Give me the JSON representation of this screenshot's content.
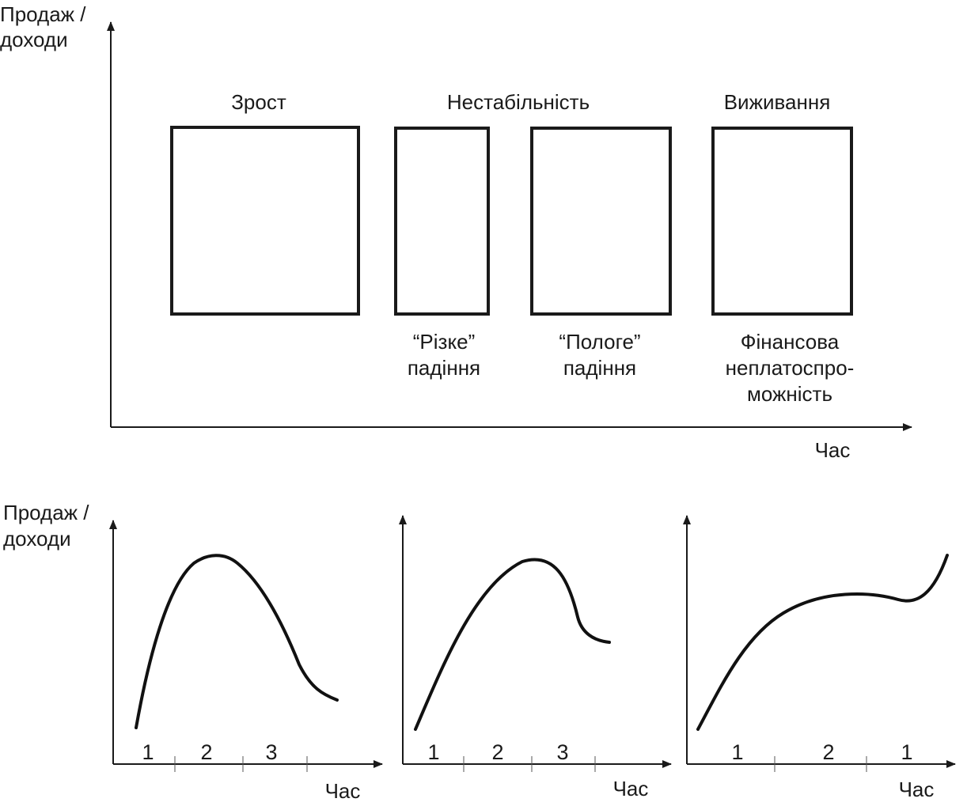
{
  "top": {
    "y_axis_label": [
      "Продаж /",
      "доходи"
    ],
    "x_axis_label": "Час",
    "stage_headers": {
      "growth": "Зрост",
      "instability": "Нестабільність",
      "survival": "Виживання"
    },
    "box_captions": {
      "sharp_decline": [
        "“Різке”",
        "падіння"
      ],
      "gentle_decline": [
        "“Пологе”",
        "падіння"
      ],
      "insolvency": [
        "Фінансова",
        "неплатоспро-",
        "можність"
      ]
    }
  },
  "bottom": {
    "y_axis_label": [
      "Продаж /",
      "доходи"
    ],
    "charts": [
      {
        "x_axis_label": "Час",
        "phase_labels": [
          "1",
          "2",
          "3"
        ]
      },
      {
        "x_axis_label": "Час",
        "phase_labels": [
          "1",
          "2",
          "3"
        ]
      },
      {
        "x_axis_label": "Час",
        "phase_labels": [
          "1",
          "2",
          "1"
        ]
      }
    ]
  }
}
